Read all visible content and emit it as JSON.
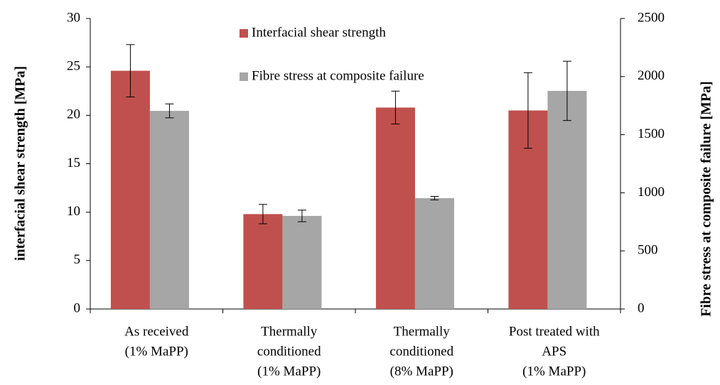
{
  "chart_data": {
    "type": "bar",
    "categories": [
      [
        "As received",
        "(1% MaPP)"
      ],
      [
        "Thermally",
        "conditioned",
        "(1% MaPP)"
      ],
      [
        "Thermally",
        "conditioned",
        "(8% MaPP)"
      ],
      [
        "Post treated with",
        "APS",
        "(1% MaPP)"
      ]
    ],
    "series": [
      {
        "name": "Interfacial shear strength",
        "color": "#c0504d",
        "values": [
          24.6,
          9.8,
          20.8,
          20.5
        ],
        "errors": [
          2.7,
          1.0,
          1.7,
          3.9
        ]
      },
      {
        "name": "Fibre stress at composite failure",
        "color": "#a6a6a6",
        "axis": "y2",
        "values": [
          1705,
          801,
          954,
          1877
        ],
        "errors": [
          60,
          50,
          15,
          255
        ]
      }
    ],
    "ylabel": "interfacial shear strength [MPa]",
    "y2label": "Fibre stress at composite failure [MPa]",
    "ylim": [
      0,
      30
    ],
    "yticks": [
      0,
      5,
      10,
      15,
      20,
      25,
      30
    ],
    "y2lim": [
      0,
      2500
    ],
    "y2ticks": [
      0,
      500,
      1000,
      1500,
      2000,
      2500
    ],
    "legend": "top"
  }
}
